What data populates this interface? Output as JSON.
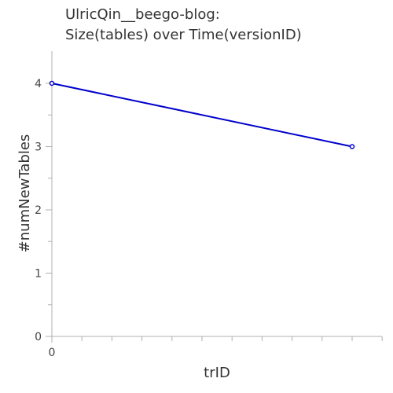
{
  "chart_data": {
    "type": "line",
    "title_lines": [
      "UlricQin__beego-blog:",
      "Size(tables) over Time(versionID)"
    ],
    "xlabel": "trID",
    "ylabel": "#numNewTables",
    "x_tick_labels": [
      "0"
    ],
    "y_ticks": [
      0,
      1,
      2,
      3,
      4
    ],
    "y_tick_labels": [
      "0",
      "1",
      "2",
      "3",
      "4"
    ],
    "ylim": [
      0,
      4.5
    ],
    "grid": false,
    "series": [
      {
        "color": "#0000cc",
        "points": [
          {
            "x": 0,
            "y": 4
          },
          {
            "x": 1,
            "y": 3
          }
        ]
      }
    ]
  }
}
